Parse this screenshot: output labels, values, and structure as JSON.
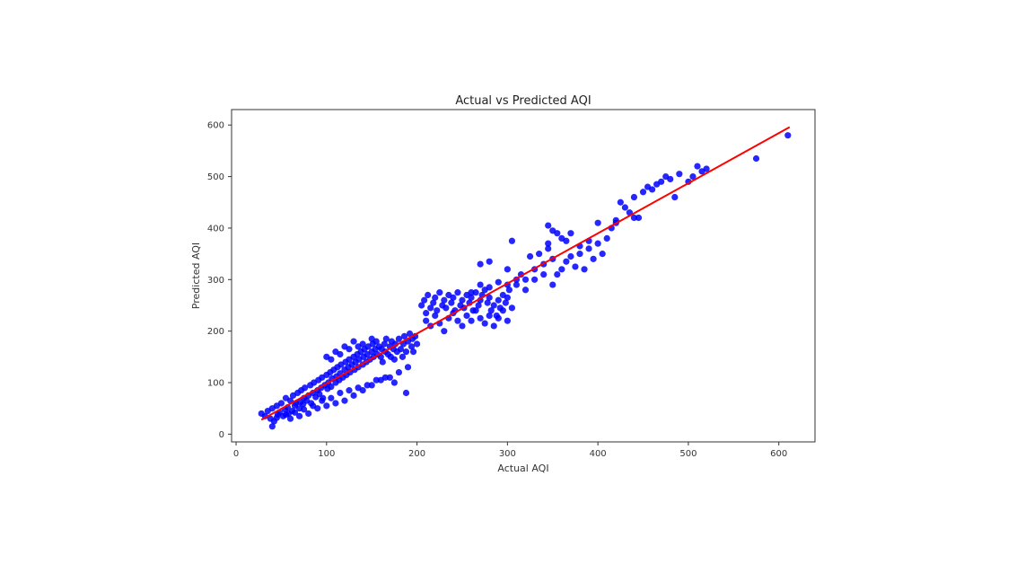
{
  "chart_data": {
    "type": "scatter",
    "title": "Actual vs Predicted AQI",
    "xlabel": "Actual AQI",
    "ylabel": "Predicted AQI",
    "xlim": [
      -5,
      640
    ],
    "ylim": [
      -15,
      630
    ],
    "xticks": [
      "0",
      "100",
      "200",
      "300",
      "400",
      "500",
      "600"
    ],
    "yticks": [
      "0",
      "100",
      "200",
      "300",
      "400",
      "500",
      "600"
    ],
    "grid": false,
    "series": [
      {
        "kind": "scatter",
        "color": "#0000ff",
        "points": [
          [
            28,
            40
          ],
          [
            32,
            35
          ],
          [
            35,
            45
          ],
          [
            38,
            30
          ],
          [
            40,
            50
          ],
          [
            42,
            25
          ],
          [
            45,
            55
          ],
          [
            46,
            38
          ],
          [
            48,
            42
          ],
          [
            50,
            60
          ],
          [
            52,
            35
          ],
          [
            54,
            48
          ],
          [
            55,
            70
          ],
          [
            57,
            52
          ],
          [
            58,
            40
          ],
          [
            60,
            65
          ],
          [
            62,
            45
          ],
          [
            63,
            75
          ],
          [
            65,
            55
          ],
          [
            66,
            60
          ],
          [
            68,
            80
          ],
          [
            70,
            50
          ],
          [
            71,
            62
          ],
          [
            72,
            85
          ],
          [
            74,
            58
          ],
          [
            75,
            70
          ],
          [
            76,
            90
          ],
          [
            78,
            65
          ],
          [
            80,
            75
          ],
          [
            82,
            95
          ],
          [
            83,
            60
          ],
          [
            85,
            80
          ],
          [
            86,
            100
          ],
          [
            88,
            72
          ],
          [
            90,
            85
          ],
          [
            91,
            105
          ],
          [
            92,
            78
          ],
          [
            94,
            90
          ],
          [
            95,
            110
          ],
          [
            96,
            70
          ],
          [
            98,
            95
          ],
          [
            100,
            115
          ],
          [
            101,
            88
          ],
          [
            102,
            100
          ],
          [
            104,
            120
          ],
          [
            105,
            92
          ],
          [
            106,
            108
          ],
          [
            108,
            125
          ],
          [
            110,
            100
          ],
          [
            111,
            112
          ],
          [
            112,
            130
          ],
          [
            114,
            105
          ],
          [
            115,
            118
          ],
          [
            116,
            135
          ],
          [
            118,
            110
          ],
          [
            120,
            125
          ],
          [
            121,
            140
          ],
          [
            122,
            115
          ],
          [
            124,
            130
          ],
          [
            125,
            145
          ],
          [
            126,
            120
          ],
          [
            128,
            135
          ],
          [
            130,
            150
          ],
          [
            131,
            125
          ],
          [
            132,
            140
          ],
          [
            134,
            155
          ],
          [
            135,
            130
          ],
          [
            136,
            145
          ],
          [
            138,
            160
          ],
          [
            140,
            135
          ],
          [
            141,
            150
          ],
          [
            142,
            165
          ],
          [
            144,
            140
          ],
          [
            145,
            155
          ],
          [
            146,
            170
          ],
          [
            148,
            145
          ],
          [
            150,
            160
          ],
          [
            151,
            175
          ],
          [
            152,
            150
          ],
          [
            154,
            165
          ],
          [
            155,
            180
          ],
          [
            156,
            155
          ],
          [
            158,
            170
          ],
          [
            160,
            150
          ],
          [
            161,
            165
          ],
          [
            162,
            140
          ],
          [
            164,
            175
          ],
          [
            165,
            160
          ],
          [
            166,
            185
          ],
          [
            168,
            155
          ],
          [
            170,
            170
          ],
          [
            171,
            150
          ],
          [
            172,
            180
          ],
          [
            174,
            165
          ],
          [
            175,
            145
          ],
          [
            176,
            175
          ],
          [
            178,
            160
          ],
          [
            180,
            185
          ],
          [
            182,
            165
          ],
          [
            184,
            150
          ],
          [
            185,
            175
          ],
          [
            186,
            190
          ],
          [
            188,
            160
          ],
          [
            190,
            180
          ],
          [
            192,
            195
          ],
          [
            194,
            170
          ],
          [
            195,
            185
          ],
          [
            196,
            160
          ],
          [
            198,
            190
          ],
          [
            200,
            175
          ],
          [
            60,
            30
          ],
          [
            70,
            35
          ],
          [
            80,
            40
          ],
          [
            90,
            50
          ],
          [
            100,
            55
          ],
          [
            110,
            60
          ],
          [
            120,
            65
          ],
          [
            130,
            75
          ],
          [
            140,
            85
          ],
          [
            150,
            95
          ],
          [
            160,
            105
          ],
          [
            170,
            110
          ],
          [
            180,
            120
          ],
          [
            190,
            130
          ],
          [
            188,
            80
          ],
          [
            175,
            100
          ],
          [
            165,
            110
          ],
          [
            155,
            105
          ],
          [
            145,
            95
          ],
          [
            135,
            90
          ],
          [
            125,
            85
          ],
          [
            115,
            80
          ],
          [
            105,
            70
          ],
          [
            95,
            65
          ],
          [
            85,
            55
          ],
          [
            75,
            48
          ],
          [
            65,
            42
          ],
          [
            55,
            38
          ],
          [
            45,
            32
          ],
          [
            40,
            15
          ],
          [
            100,
            150
          ],
          [
            110,
            160
          ],
          [
            120,
            170
          ],
          [
            130,
            180
          ],
          [
            140,
            175
          ],
          [
            150,
            185
          ],
          [
            125,
            165
          ],
          [
            115,
            155
          ],
          [
            105,
            145
          ],
          [
            135,
            170
          ],
          [
            205,
            250
          ],
          [
            208,
            260
          ],
          [
            210,
            235
          ],
          [
            212,
            270
          ],
          [
            215,
            245
          ],
          [
            218,
            255
          ],
          [
            220,
            265
          ],
          [
            222,
            240
          ],
          [
            225,
            275
          ],
          [
            228,
            250
          ],
          [
            230,
            260
          ],
          [
            232,
            245
          ],
          [
            235,
            270
          ],
          [
            238,
            255
          ],
          [
            240,
            265
          ],
          [
            242,
            240
          ],
          [
            245,
            275
          ],
          [
            248,
            250
          ],
          [
            250,
            260
          ],
          [
            252,
            245
          ],
          [
            255,
            270
          ],
          [
            258,
            255
          ],
          [
            260,
            265
          ],
          [
            262,
            240
          ],
          [
            265,
            275
          ],
          [
            268,
            250
          ],
          [
            270,
            260
          ],
          [
            272,
            270
          ],
          [
            275,
            280
          ],
          [
            278,
            255
          ],
          [
            280,
            265
          ],
          [
            282,
            240
          ],
          [
            285,
            250
          ],
          [
            288,
            230
          ],
          [
            290,
            260
          ],
          [
            292,
            245
          ],
          [
            295,
            270
          ],
          [
            298,
            255
          ],
          [
            300,
            265
          ],
          [
            302,
            280
          ],
          [
            210,
            220
          ],
          [
            215,
            210
          ],
          [
            220,
            230
          ],
          [
            225,
            215
          ],
          [
            230,
            200
          ],
          [
            235,
            225
          ],
          [
            240,
            235
          ],
          [
            245,
            220
          ],
          [
            250,
            210
          ],
          [
            255,
            230
          ],
          [
            260,
            220
          ],
          [
            265,
            240
          ],
          [
            270,
            225
          ],
          [
            275,
            215
          ],
          [
            280,
            230
          ],
          [
            285,
            210
          ],
          [
            290,
            225
          ],
          [
            295,
            240
          ],
          [
            300,
            220
          ],
          [
            305,
            245
          ],
          [
            270,
            330
          ],
          [
            280,
            335
          ],
          [
            300,
            320
          ],
          [
            305,
            375
          ],
          [
            310,
            290
          ],
          [
            315,
            310
          ],
          [
            320,
            300
          ],
          [
            325,
            345
          ],
          [
            330,
            320
          ],
          [
            335,
            350
          ],
          [
            340,
            330
          ],
          [
            345,
            360
          ],
          [
            350,
            340
          ],
          [
            355,
            310
          ],
          [
            360,
            320
          ],
          [
            365,
            335
          ],
          [
            370,
            345
          ],
          [
            375,
            325
          ],
          [
            380,
            350
          ],
          [
            385,
            320
          ],
          [
            390,
            360
          ],
          [
            395,
            340
          ],
          [
            400,
            370
          ],
          [
            405,
            350
          ],
          [
            410,
            380
          ],
          [
            415,
            400
          ],
          [
            420,
            410
          ],
          [
            425,
            450
          ],
          [
            430,
            440
          ],
          [
            435,
            430
          ],
          [
            440,
            460
          ],
          [
            445,
            420
          ],
          [
            450,
            470
          ],
          [
            455,
            480
          ],
          [
            460,
            475
          ],
          [
            465,
            485
          ],
          [
            470,
            490
          ],
          [
            475,
            500
          ],
          [
            480,
            495
          ],
          [
            485,
            460
          ],
          [
            490,
            505
          ],
          [
            500,
            490
          ],
          [
            505,
            500
          ],
          [
            510,
            520
          ],
          [
            515,
            510
          ],
          [
            520,
            515
          ],
          [
            345,
            405
          ],
          [
            350,
            395
          ],
          [
            360,
            380
          ],
          [
            370,
            390
          ],
          [
            380,
            365
          ],
          [
            390,
            375
          ],
          [
            400,
            410
          ],
          [
            420,
            415
          ],
          [
            440,
            420
          ],
          [
            575,
            535
          ],
          [
            610,
            580
          ],
          [
            345,
            370
          ],
          [
            355,
            390
          ],
          [
            365,
            375
          ],
          [
            330,
            300
          ],
          [
            340,
            310
          ],
          [
            350,
            290
          ],
          [
            320,
            280
          ],
          [
            310,
            300
          ],
          [
            300,
            290
          ],
          [
            290,
            295
          ],
          [
            280,
            285
          ],
          [
            270,
            290
          ],
          [
            260,
            275
          ]
        ]
      },
      {
        "kind": "line",
        "color": "#ff0000",
        "points": [
          [
            28,
            28
          ],
          [
            612,
            596
          ]
        ]
      }
    ]
  }
}
